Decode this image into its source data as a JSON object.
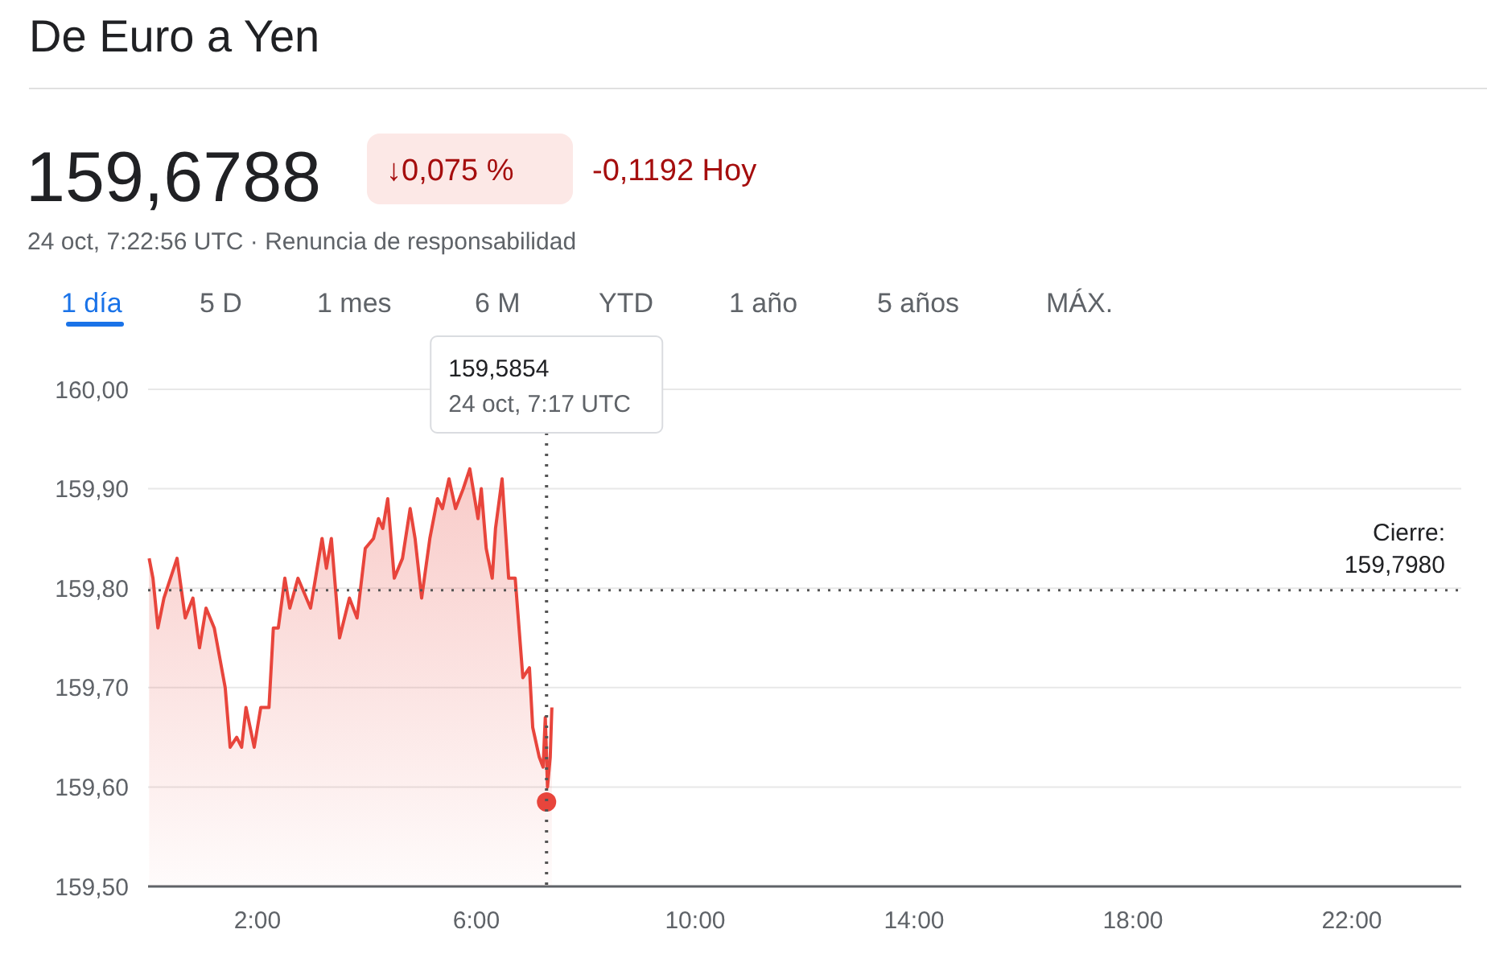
{
  "chart_data": {
    "type": "area",
    "title": "De Euro a Yen",
    "subtitle": "24 oct, 7:22:56 UTC · Renuncia de responsabilidad",
    "annotations": [
      "159,6788",
      "↓0,075 %",
      "-0,1192 Hoy",
      "1 día",
      "5 D",
      "1 mes",
      "6 M",
      "YTD",
      "1 año",
      "5 años",
      "MÁX.",
      "159,5854\n24 oct, 7:17 UTC"
    ],
    "xlim": [
      0,
      24
    ],
    "xticks": [
      {
        "value": 2,
        "label": "2:00"
      },
      {
        "value": 6,
        "label": "6:00"
      },
      {
        "value": 10,
        "label": "10:00"
      },
      {
        "value": 14,
        "label": "14:00"
      },
      {
        "value": 18,
        "label": "18:00"
      },
      {
        "value": 22,
        "label": "22:00"
      }
    ],
    "ylim": [
      159.5,
      160.0
    ],
    "yticks": [
      {
        "value": 159.5,
        "label": "159,50"
      },
      {
        "value": 159.6,
        "label": "159,60"
      },
      {
        "value": 159.7,
        "label": "159,70"
      },
      {
        "value": 159.8,
        "label": "159,80"
      },
      {
        "value": 159.9,
        "label": "159,90"
      },
      {
        "value": 160.0,
        "label": "160,00"
      }
    ],
    "grid": "y",
    "legend": false,
    "marker": "none",
    "line_style": "solid",
    "ref_lines": [
      {
        "axis": "y",
        "value": 159.798,
        "label": "Cierre: 159,7980",
        "line_style": "dotted",
        "color": "#555555"
      },
      {
        "axis": "x",
        "value": 7.283,
        "label": null,
        "line_style": "dotted",
        "color": "#555555"
      }
    ],
    "series": [
      {
        "color": "#e8453c",
        "x": [
          0.02,
          0.09,
          0.18,
          0.29,
          0.53,
          0.68,
          0.82,
          0.94,
          1.06,
          1.21,
          1.41,
          1.5,
          1.62,
          1.71,
          1.79,
          1.94,
          2.06,
          2.21,
          2.29,
          2.38,
          2.5,
          2.59,
          2.74,
          2.97,
          3.18,
          3.26,
          3.35,
          3.5,
          3.68,
          3.82,
          3.97,
          4.12,
          4.21,
          4.29,
          4.38,
          4.5,
          4.65,
          4.79,
          4.88,
          5,
          5.15,
          5.29,
          5.38,
          5.5,
          5.62,
          5.76,
          5.88,
          6.03,
          6.09,
          6.18,
          6.29,
          6.35,
          6.47,
          6.59,
          6.71,
          6.85,
          6.97,
          7.03,
          7.15,
          7.22,
          7.26,
          7.3,
          7.35,
          7.38
        ],
        "values": [
          159.83,
          159.81,
          159.76,
          159.79,
          159.83,
          159.77,
          159.79,
          159.74,
          159.78,
          159.76,
          159.7,
          159.64,
          159.65,
          159.64,
          159.68,
          159.64,
          159.68,
          159.68,
          159.76,
          159.76,
          159.81,
          159.78,
          159.81,
          159.78,
          159.85,
          159.82,
          159.85,
          159.75,
          159.79,
          159.77,
          159.84,
          159.85,
          159.87,
          159.86,
          159.89,
          159.81,
          159.83,
          159.88,
          159.85,
          159.79,
          159.85,
          159.89,
          159.88,
          159.91,
          159.88,
          159.9,
          159.92,
          159.87,
          159.9,
          159.84,
          159.81,
          159.86,
          159.91,
          159.81,
          159.81,
          159.71,
          159.72,
          159.66,
          159.63,
          159.62,
          159.67,
          159.6,
          159.63,
          159.68
        ]
      },
      {
        "type": "scatter",
        "marker": "circle",
        "color": "#e8453c",
        "x": [
          7.283
        ],
        "values": [
          159.585
        ]
      }
    ]
  }
}
